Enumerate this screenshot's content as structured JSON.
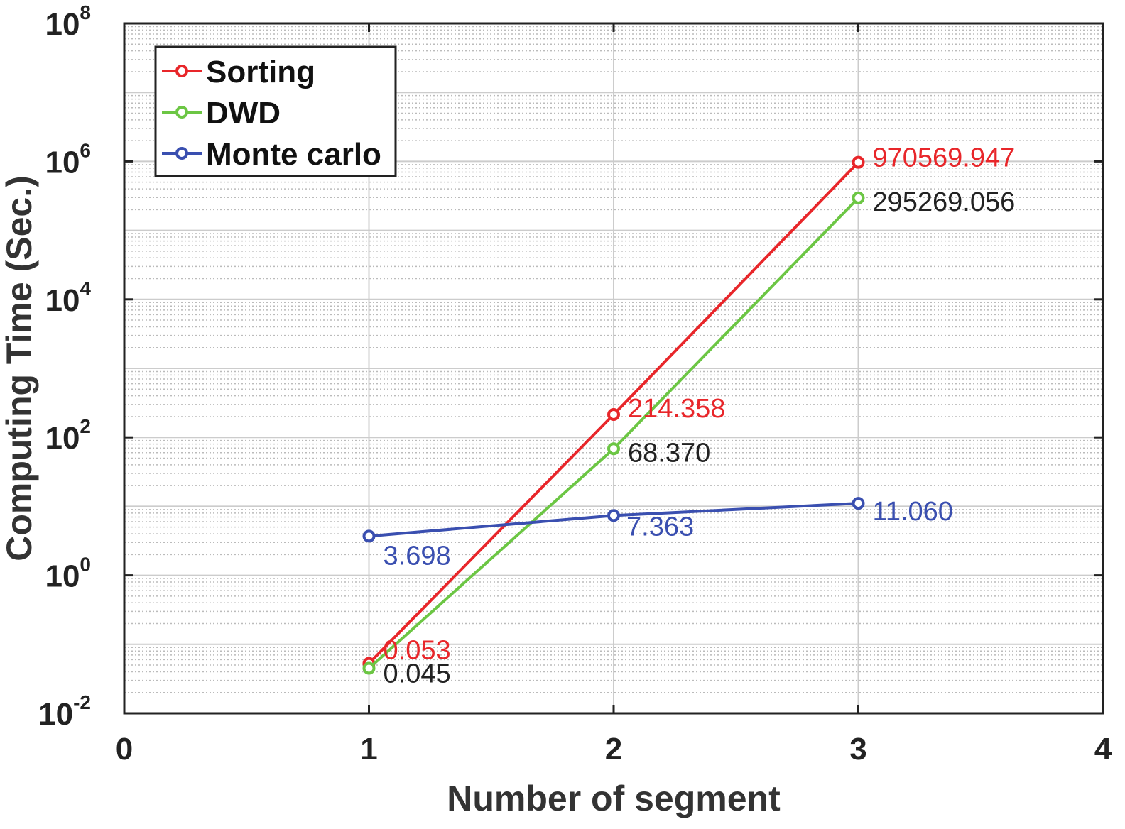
{
  "chart_data": {
    "type": "line",
    "title": "",
    "xlabel": "Number of segment",
    "ylabel": "Computing Time (Sec.)",
    "xlim": [
      0,
      4
    ],
    "ylim": [
      0.01,
      100000000
    ],
    "yscale": "log",
    "grid": true,
    "legend_placement": "top-left",
    "x_ticks": [
      "0",
      "1",
      "2",
      "3",
      "4"
    ],
    "y_ticks": [
      {
        "base": "10",
        "exp": "-2"
      },
      {
        "base": "10",
        "exp": "0"
      },
      {
        "base": "10",
        "exp": "2"
      },
      {
        "base": "10",
        "exp": "4"
      },
      {
        "base": "10",
        "exp": "6"
      },
      {
        "base": "10",
        "exp": "8"
      }
    ],
    "x": [
      1,
      2,
      3
    ],
    "series": [
      {
        "name": "Sorting",
        "color": "#e8262a",
        "label_color": "#e8262a",
        "values": [
          0.053,
          214.358,
          970569.947
        ],
        "labels": [
          "0.053",
          "214.358",
          "970569.947"
        ]
      },
      {
        "name": "DWD",
        "color": "#6cc644",
        "label_color": "#222222",
        "values": [
          0.045,
          68.37,
          295269.056
        ],
        "labels": [
          "0.045",
          "68.370",
          "295269.056"
        ]
      },
      {
        "name": "Monte carlo",
        "color": "#3a4fb0",
        "label_color": "#3a4fb0",
        "values": [
          3.698,
          7.363,
          11.06
        ],
        "labels": [
          "3.698",
          "7.363",
          "11.060"
        ]
      }
    ]
  }
}
